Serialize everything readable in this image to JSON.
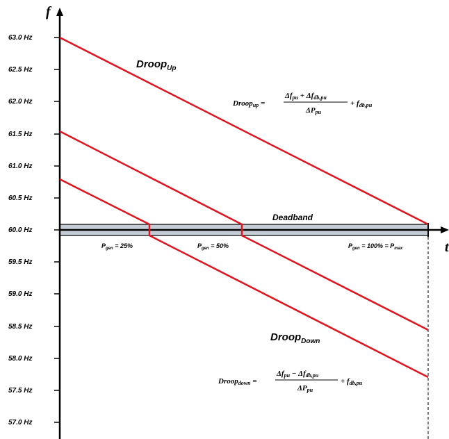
{
  "axes": {
    "y_label": "f",
    "x_label": "t",
    "y_ticks": [
      "63.0 Hz",
      "62.5 Hz",
      "62.0 Hz",
      "61.5 Hz",
      "61.0 Hz",
      "60.5 Hz",
      "60.0 Hz",
      "59.5 Hz",
      "59.0 Hz",
      "58.5 Hz",
      "58.0 Hz",
      "57.5 Hz",
      "57.0 Hz"
    ]
  },
  "labels": {
    "droop_up": {
      "main": "Droop",
      "sub": "Up"
    },
    "droop_down": {
      "main": "Droop",
      "sub": "Down"
    },
    "deadband": "Deadband",
    "p25": {
      "p": "P",
      "sub": "gen",
      "rest": " = 25%"
    },
    "p50": {
      "p": "P",
      "sub": "gen",
      "rest": " = 50%"
    },
    "p100": {
      "p": "P",
      "sub": "gen",
      "rest": " = 100% = P",
      "sub2": "max"
    }
  },
  "formulas": {
    "up": {
      "lhs": "Droop",
      "lhs_sub": "up",
      "eq": " =",
      "num_a": "Δf",
      "num_a_sub": "pu",
      "num_op": " + Δf",
      "num_b_sub": "db,pu",
      "den": "ΔP",
      "den_sub": "pu",
      "tail": "+ f",
      "tail_sub": "db,pu"
    },
    "down": {
      "lhs": "Droop",
      "lhs_sub": "down",
      "eq": " =",
      "num_a": "Δf",
      "num_a_sub": "pu",
      "num_op": " − Δf",
      "num_b_sub": "db,pu",
      "den": "ΔP",
      "den_sub": "pu",
      "tail": "+ f",
      "tail_sub": "db,pu"
    }
  },
  "colors": {
    "line": "#e0141e",
    "deadband_fill": "#c4cdd6",
    "axis": "#000000"
  }
}
